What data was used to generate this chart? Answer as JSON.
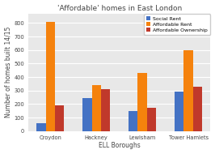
{
  "title": "'Affordable' homes in East London",
  "xlabel": "ELL Boroughs",
  "ylabel": "Number of homes built 14/15",
  "categories": [
    "Croydon",
    "Hackney",
    "Lewisham",
    "Tower Hamlets"
  ],
  "series": [
    {
      "label": "Social Rent",
      "color": "#4472c4",
      "values": [
        60,
        245,
        150,
        295
      ]
    },
    {
      "label": "Affordable Rent",
      "color": "#f5820d",
      "values": [
        810,
        340,
        430,
        600
      ]
    },
    {
      "label": "Affordable Ownership",
      "color": "#c0392b",
      "values": [
        190,
        310,
        170,
        330
      ]
    }
  ],
  "ylim": [
    0,
    870
  ],
  "yticks": [
    0,
    100,
    200,
    300,
    400,
    500,
    600,
    700,
    800
  ],
  "plot_bg": "#e8e8e8",
  "fig_bg": "#ffffff",
  "grid_color": "#ffffff",
  "title_fontsize": 6.5,
  "axis_fontsize": 5.5,
  "tick_fontsize": 4.8,
  "legend_fontsize": 4.5
}
